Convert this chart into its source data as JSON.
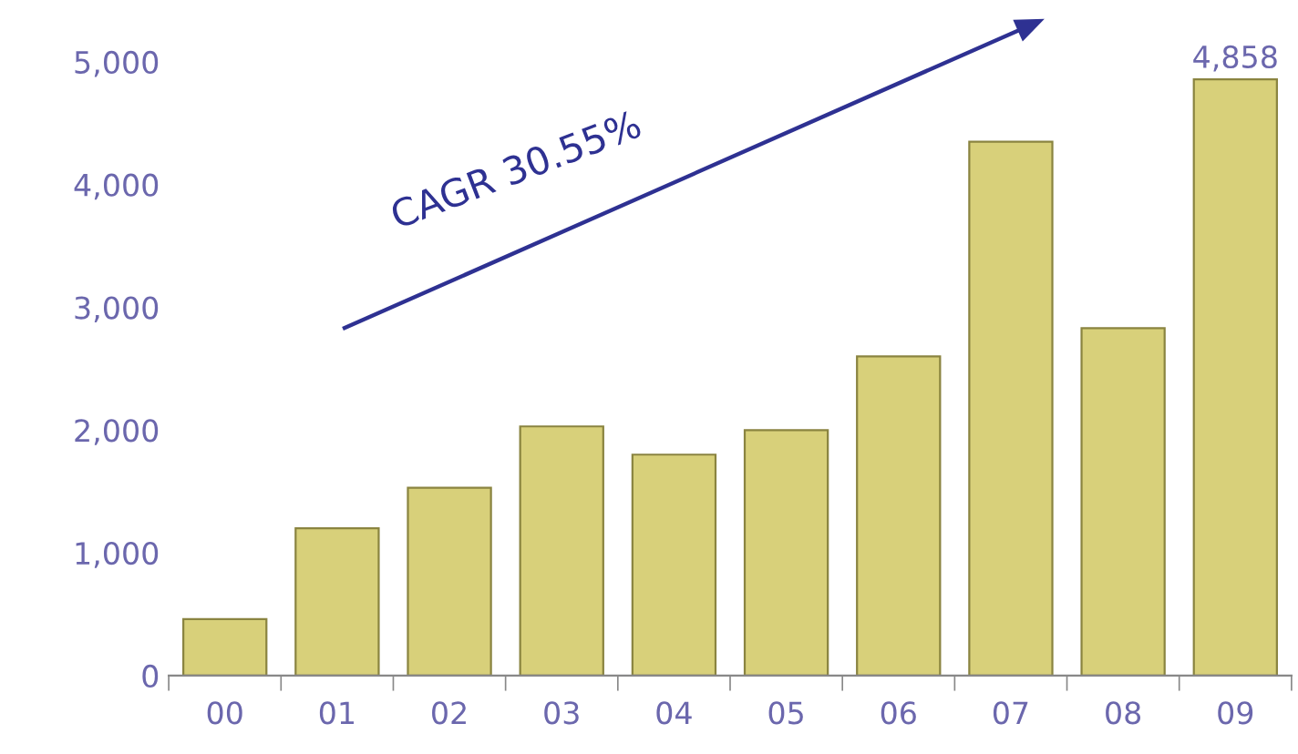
{
  "chart_data": {
    "type": "bar",
    "categories": [
      "00",
      "01",
      "02",
      "03",
      "04",
      "05",
      "06",
      "07",
      "08",
      "09"
    ],
    "values": [
      460,
      1200,
      1530,
      2030,
      1800,
      2000,
      2600,
      4350,
      2830,
      4858
    ],
    "value_labels": [
      null,
      null,
      null,
      null,
      null,
      null,
      null,
      null,
      null,
      "4,858"
    ],
    "color": "#d8d07a",
    "ylim": [
      0,
      5000
    ],
    "yticks": [
      {
        "value": 0,
        "label": "0"
      },
      {
        "value": 1000,
        "label": "1,000"
      },
      {
        "value": 2000,
        "label": "2,000"
      },
      {
        "value": 3000,
        "label": "3,000"
      },
      {
        "value": 4000,
        "label": "4,000"
      },
      {
        "value": 5000,
        "label": "5,000"
      }
    ],
    "annotations": [
      "CAGR 30.55%"
    ],
    "grid": false,
    "legend": false
  }
}
